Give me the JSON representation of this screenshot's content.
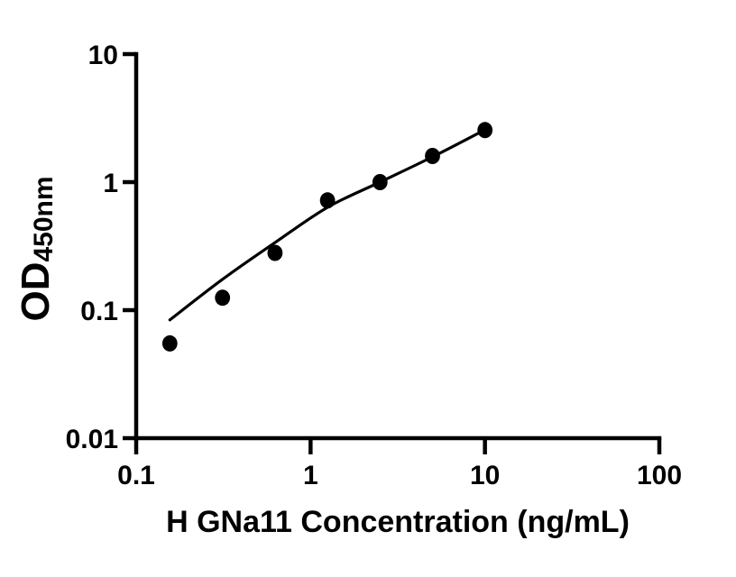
{
  "figure": {
    "background_color": "#ffffff",
    "ink_color": "#000000"
  },
  "chart_data": {
    "type": "scatter",
    "title": "",
    "xlabel": "H GNa11 Concentration (ng/mL)",
    "ylabel": "OD450nm",
    "ylabel_parts": {
      "main": "OD",
      "sub": "450nm"
    },
    "x_axis": {
      "scale": "log",
      "min": 0.1,
      "max": 100,
      "ticks": [
        0.1,
        1,
        10,
        100
      ],
      "tick_labels": [
        "0.1",
        "1",
        "10",
        "100"
      ]
    },
    "y_axis": {
      "scale": "log",
      "min": 0.01,
      "max": 10,
      "ticks": [
        0.01,
        0.1,
        1,
        10
      ],
      "tick_labels": [
        "0.01",
        "0.1",
        "1",
        "10"
      ]
    },
    "grid": false,
    "legend": null,
    "series": [
      {
        "name": "standard-points",
        "kind": "scatter",
        "marker": "circle",
        "color": "#000000",
        "x": [
          0.156,
          0.3125,
          0.625,
          1.25,
          2.5,
          5,
          10
        ],
        "y": [
          0.055,
          0.125,
          0.28,
          0.72,
          1.0,
          1.6,
          2.55
        ]
      },
      {
        "name": "fit-curve",
        "kind": "line",
        "color": "#000000",
        "x": [
          0.156,
          0.3125,
          0.625,
          1.25,
          2.5,
          5,
          10
        ],
        "y": [
          0.084,
          0.174,
          0.337,
          0.635,
          1.0,
          1.575,
          2.56
        ]
      }
    ]
  }
}
